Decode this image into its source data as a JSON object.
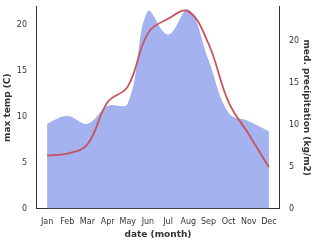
{
  "chart_data": {
    "type": "line",
    "x_label": "date (month)",
    "y_label": "max temp (C)",
    "y2_label": "med. precipitation (kg/m2)",
    "categories": [
      "Jan",
      "Feb",
      "Mar",
      "Apr",
      "May",
      "Jun",
      "Jul",
      "Aug",
      "Sep",
      "Oct",
      "Nov",
      "Dec"
    ],
    "series": [
      {
        "name": "med. precipitation (kg/m2)",
        "type": "area",
        "axis": "y2",
        "color": "#a4b2f0",
        "values": [
          10.1,
          11.0,
          10.1,
          12.2,
          12.5,
          23.5,
          20.7,
          23.7,
          17.7,
          11.4,
          10.4,
          9.2
        ]
      },
      {
        "name": "max temp (C)",
        "type": "line",
        "color": "#c9535a",
        "values": [
          5.8,
          6.0,
          7.0,
          11.6,
          13.3,
          19.1,
          20.7,
          21.5,
          18.0,
          11.6,
          8.1,
          4.5
        ]
      }
    ],
    "ylim": [
      0,
      22
    ],
    "yticks": [
      0,
      5,
      10,
      15,
      20
    ],
    "y2lim": [
      0,
      24
    ],
    "y2ticks": [
      0,
      5,
      10,
      15,
      20
    ],
    "grid": false
  }
}
